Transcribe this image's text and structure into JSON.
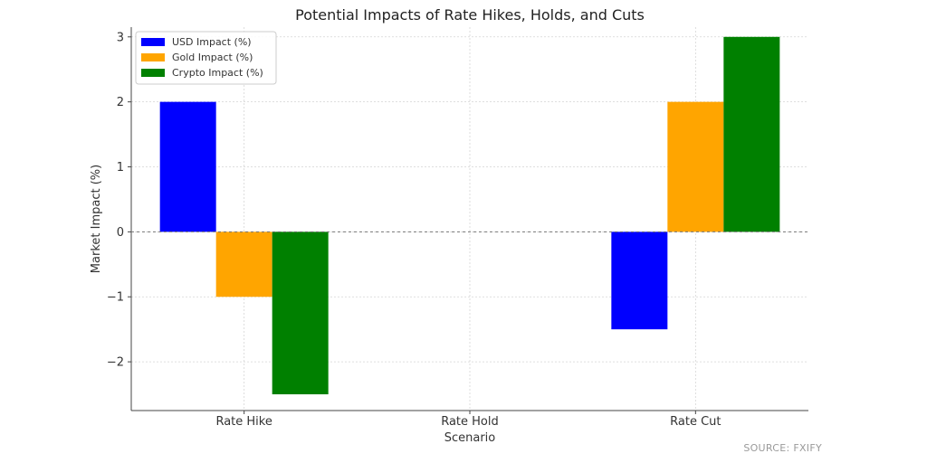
{
  "chart_data": {
    "type": "bar",
    "title": "Potential Impacts of Rate Hikes, Holds, and Cuts",
    "xlabel": "Scenario",
    "ylabel": "Market Impact (%)",
    "categories": [
      "Rate Hike",
      "Rate Hold",
      "Rate Cut"
    ],
    "series": [
      {
        "name": "USD Impact (%)",
        "color": "#0000ff",
        "values": [
          2,
          0,
          -1.5
        ]
      },
      {
        "name": "Gold Impact (%)",
        "color": "#ffa500",
        "values": [
          -1,
          0,
          2
        ]
      },
      {
        "name": "Crypto Impact (%)",
        "color": "#008000",
        "values": [
          -2.5,
          0,
          3
        ]
      }
    ],
    "ylim": [
      -2.75,
      3.15
    ],
    "yticks": [
      -2,
      -1,
      0,
      1,
      2,
      3
    ],
    "ytick_labels": [
      "−2",
      "−1",
      "0",
      "1",
      "2",
      "3"
    ],
    "grid": true,
    "legend_position": "top-left"
  },
  "source_note": "SOURCE: FXIFY"
}
